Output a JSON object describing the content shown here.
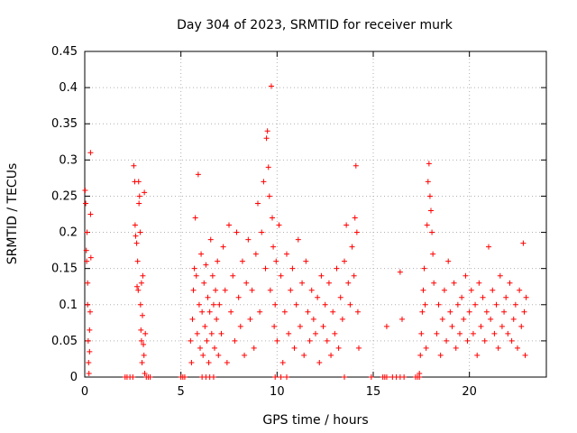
{
  "chart_data": {
    "type": "scatter",
    "title": "Day 304 of 2023, SRMTID for receiver murk",
    "xlabel": "GPS time / hours",
    "ylabel": "SRMTID / TECUs",
    "xlim": [
      0,
      24
    ],
    "ylim": [
      0,
      0.45
    ],
    "xticks": [
      0,
      5,
      10,
      15,
      20
    ],
    "xtick_labels": [
      "0",
      "5",
      "10",
      "15",
      "20"
    ],
    "yticks": [
      0,
      0.05,
      0.1,
      0.15,
      0.2,
      0.25,
      0.3,
      0.35,
      0.4,
      0.45
    ],
    "ytick_labels": [
      "0",
      "0.05",
      "0.1",
      "0.15",
      "0.2",
      "0.25",
      "0.3",
      "0.35",
      "0.4",
      "0.45"
    ],
    "grid": true,
    "marker": "plus",
    "color": "#ff0000",
    "series": [
      {
        "points": [
          [
            0.02,
            0.258
          ],
          [
            0.05,
            0.24
          ],
          [
            0.08,
            0.175
          ],
          [
            0.1,
            0.16
          ],
          [
            0.12,
            0.2
          ],
          [
            0.15,
            0.1
          ],
          [
            0.18,
            0.05
          ],
          [
            0.2,
            0.02
          ],
          [
            0.22,
            0.005
          ],
          [
            0.25,
            0.035
          ],
          [
            0.28,
            0.09
          ],
          [
            0.3,
            0.31
          ],
          [
            0.3,
            0.225
          ],
          [
            0.32,
            0.165
          ],
          [
            0.25,
            0.065
          ],
          [
            0.15,
            0.13
          ],
          [
            2.55,
            0.292
          ],
          [
            2.6,
            0.27
          ],
          [
            2.62,
            0.21
          ],
          [
            2.65,
            0.195
          ],
          [
            2.7,
            0.185
          ],
          [
            2.72,
            0.125
          ],
          [
            2.75,
            0.16
          ],
          [
            2.8,
            0.27
          ],
          [
            2.82,
            0.24
          ],
          [
            2.85,
            0.25
          ],
          [
            2.88,
            0.2
          ],
          [
            2.9,
            0.1
          ],
          [
            2.92,
            0.065
          ],
          [
            2.95,
            0.05
          ],
          [
            2.98,
            0.02
          ],
          [
            3.0,
            0.085
          ],
          [
            3.02,
            0.14
          ],
          [
            3.05,
            0.045
          ],
          [
            3.08,
            0.03
          ],
          [
            3.1,
            0.255
          ],
          [
            3.12,
            0.005
          ],
          [
            3.15,
            0.06
          ],
          [
            2.78,
            0.12
          ],
          [
            2.95,
            0.13
          ],
          [
            5.5,
            0.05
          ],
          [
            5.55,
            0.02
          ],
          [
            5.6,
            0.08
          ],
          [
            5.65,
            0.12
          ],
          [
            5.7,
            0.15
          ],
          [
            5.75,
            0.22
          ],
          [
            5.8,
            0.14
          ],
          [
            5.85,
            0.06
          ],
          [
            5.9,
            0.28
          ],
          [
            5.95,
            0.1
          ],
          [
            6.0,
            0.04
          ],
          [
            6.05,
            0.17
          ],
          [
            6.1,
            0.09
          ],
          [
            6.15,
            0.03
          ],
          [
            6.2,
            0.13
          ],
          [
            6.25,
            0.07
          ],
          [
            6.3,
            0.155
          ],
          [
            6.35,
            0.05
          ],
          [
            6.4,
            0.11
          ],
          [
            6.45,
            0.02
          ],
          [
            6.5,
            0.09
          ],
          [
            6.55,
            0.19
          ],
          [
            6.6,
            0.06
          ],
          [
            6.65,
            0.14
          ],
          [
            6.7,
            0.1
          ],
          [
            6.75,
            0.04
          ],
          [
            6.8,
            0.12
          ],
          [
            6.85,
            0.08
          ],
          [
            6.9,
            0.16
          ],
          [
            6.95,
            0.03
          ],
          [
            7.0,
            0.1
          ],
          [
            7.1,
            0.06
          ],
          [
            7.2,
            0.18
          ],
          [
            7.3,
            0.12
          ],
          [
            7.4,
            0.02
          ],
          [
            7.5,
            0.21
          ],
          [
            7.6,
            0.09
          ],
          [
            7.7,
            0.14
          ],
          [
            7.8,
            0.05
          ],
          [
            7.9,
            0.2
          ],
          [
            8.0,
            0.11
          ],
          [
            8.1,
            0.07
          ],
          [
            8.2,
            0.16
          ],
          [
            8.3,
            0.03
          ],
          [
            8.4,
            0.13
          ],
          [
            8.5,
            0.19
          ],
          [
            8.6,
            0.08
          ],
          [
            8.7,
            0.12
          ],
          [
            8.8,
            0.04
          ],
          [
            8.9,
            0.17
          ],
          [
            9.0,
            0.24
          ],
          [
            9.1,
            0.09
          ],
          [
            9.2,
            0.2
          ],
          [
            9.3,
            0.27
          ],
          [
            9.4,
            0.15
          ],
          [
            9.45,
            0.33
          ],
          [
            9.5,
            0.34
          ],
          [
            9.55,
            0.29
          ],
          [
            9.6,
            0.25
          ],
          [
            9.65,
            0.12
          ],
          [
            9.7,
            0.402
          ],
          [
            9.75,
            0.22
          ],
          [
            9.8,
            0.18
          ],
          [
            9.85,
            0.07
          ],
          [
            9.9,
            0.1
          ],
          [
            9.95,
            0.16
          ],
          [
            10.0,
            0.05
          ],
          [
            10.1,
            0.21
          ],
          [
            10.2,
            0.14
          ],
          [
            10.3,
            0.02
          ],
          [
            10.4,
            0.09
          ],
          [
            10.5,
            0.17
          ],
          [
            10.6,
            0.06
          ],
          [
            10.7,
            0.12
          ],
          [
            10.8,
            0.15
          ],
          [
            10.9,
            0.04
          ],
          [
            11.0,
            0.1
          ],
          [
            11.1,
            0.19
          ],
          [
            11.2,
            0.07
          ],
          [
            11.3,
            0.13
          ],
          [
            11.4,
            0.03
          ],
          [
            11.5,
            0.16
          ],
          [
            11.6,
            0.09
          ],
          [
            11.7,
            0.05
          ],
          [
            11.8,
            0.12
          ],
          [
            11.9,
            0.08
          ],
          [
            12.0,
            0.06
          ],
          [
            12.1,
            0.11
          ],
          [
            12.2,
            0.02
          ],
          [
            12.3,
            0.14
          ],
          [
            12.4,
            0.07
          ],
          [
            12.5,
            0.1
          ],
          [
            12.6,
            0.05
          ],
          [
            12.7,
            0.13
          ],
          [
            12.8,
            0.03
          ],
          [
            12.9,
            0.09
          ],
          [
            13.0,
            0.06
          ],
          [
            13.1,
            0.15
          ],
          [
            13.2,
            0.04
          ],
          [
            13.3,
            0.11
          ],
          [
            13.4,
            0.08
          ],
          [
            13.5,
            0.16
          ],
          [
            13.6,
            0.21
          ],
          [
            13.7,
            0.13
          ],
          [
            13.8,
            0.1
          ],
          [
            13.9,
            0.18
          ],
          [
            14.0,
            0.14
          ],
          [
            14.05,
            0.22
          ],
          [
            14.1,
            0.292
          ],
          [
            14.15,
            0.2
          ],
          [
            14.2,
            0.09
          ],
          [
            14.25,
            0.04
          ],
          [
            15.7,
            0.07
          ],
          [
            16.4,
            0.145
          ],
          [
            16.5,
            0.08
          ],
          [
            17.4,
            0.005
          ],
          [
            17.45,
            0.03
          ],
          [
            17.5,
            0.06
          ],
          [
            17.55,
            0.09
          ],
          [
            17.6,
            0.12
          ],
          [
            17.65,
            0.15
          ],
          [
            17.7,
            0.1
          ],
          [
            17.75,
            0.04
          ],
          [
            17.8,
            0.21
          ],
          [
            17.85,
            0.27
          ],
          [
            17.9,
            0.295
          ],
          [
            17.95,
            0.25
          ],
          [
            18.0,
            0.23
          ],
          [
            18.05,
            0.2
          ],
          [
            18.1,
            0.17
          ],
          [
            18.15,
            0.13
          ],
          [
            18.3,
            0.06
          ],
          [
            18.4,
            0.1
          ],
          [
            18.5,
            0.03
          ],
          [
            18.6,
            0.08
          ],
          [
            18.7,
            0.12
          ],
          [
            18.8,
            0.05
          ],
          [
            18.9,
            0.16
          ],
          [
            19.0,
            0.09
          ],
          [
            19.1,
            0.07
          ],
          [
            19.2,
            0.13
          ],
          [
            19.3,
            0.04
          ],
          [
            19.4,
            0.1
          ],
          [
            19.5,
            0.06
          ],
          [
            19.6,
            0.11
          ],
          [
            19.7,
            0.08
          ],
          [
            19.8,
            0.14
          ],
          [
            19.9,
            0.05
          ],
          [
            20.0,
            0.09
          ],
          [
            20.1,
            0.12
          ],
          [
            20.2,
            0.06
          ],
          [
            20.3,
            0.1
          ],
          [
            20.4,
            0.03
          ],
          [
            20.5,
            0.13
          ],
          [
            20.6,
            0.07
          ],
          [
            20.7,
            0.11
          ],
          [
            20.8,
            0.05
          ],
          [
            20.9,
            0.09
          ],
          [
            21.0,
            0.18
          ],
          [
            21.1,
            0.08
          ],
          [
            21.2,
            0.12
          ],
          [
            21.3,
            0.06
          ],
          [
            21.4,
            0.1
          ],
          [
            21.5,
            0.04
          ],
          [
            21.6,
            0.14
          ],
          [
            21.7,
            0.07
          ],
          [
            21.8,
            0.09
          ],
          [
            21.9,
            0.11
          ],
          [
            22.0,
            0.06
          ],
          [
            22.1,
            0.13
          ],
          [
            22.2,
            0.05
          ],
          [
            22.3,
            0.08
          ],
          [
            22.4,
            0.1
          ],
          [
            22.5,
            0.04
          ],
          [
            22.6,
            0.12
          ],
          [
            22.7,
            0.07
          ],
          [
            22.8,
            0.185
          ],
          [
            22.85,
            0.09
          ],
          [
            22.9,
            0.03
          ],
          [
            22.95,
            0.11
          ]
        ],
        "zero_points": [
          2.1,
          2.2,
          2.35,
          2.5,
          3.2,
          3.3,
          3.4,
          5.0,
          5.1,
          5.2,
          6.1,
          6.3,
          6.5,
          6.7,
          9.9,
          10.2,
          10.5,
          13.5,
          14.9,
          15.5,
          15.6,
          15.7,
          16.0,
          16.2,
          16.4,
          16.6,
          17.2,
          17.3,
          17.4
        ]
      }
    ]
  }
}
